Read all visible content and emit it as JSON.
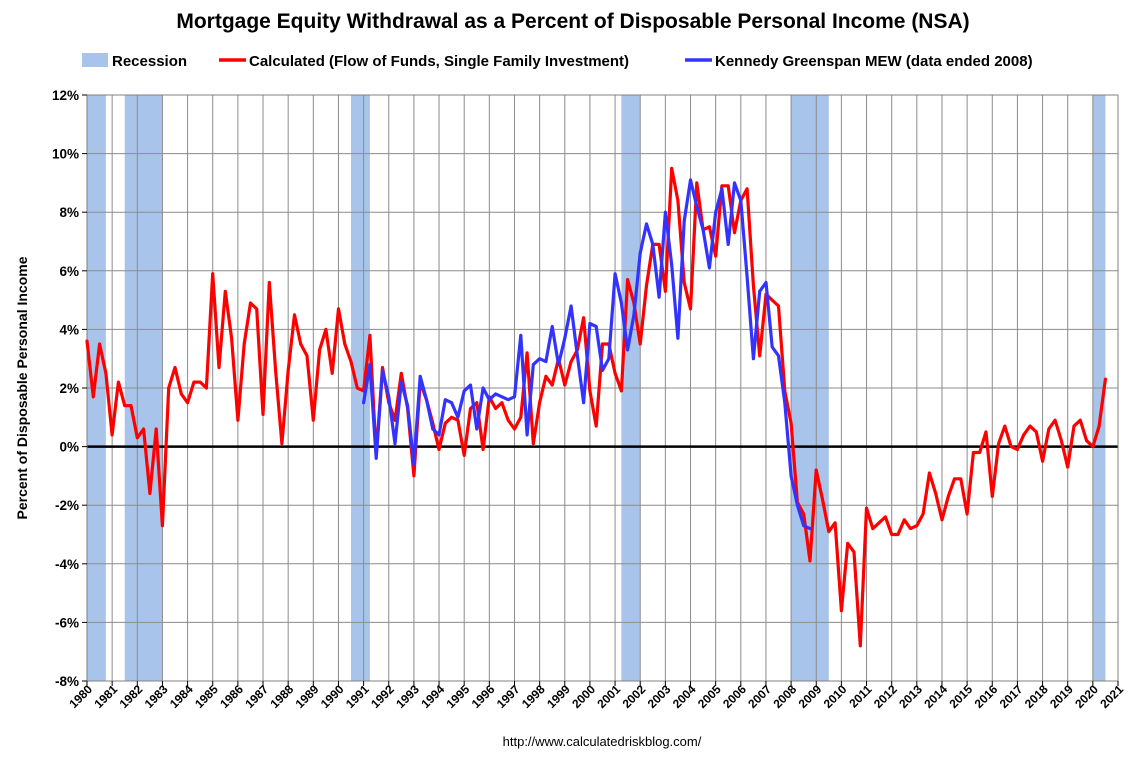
{
  "chart_data": {
    "type": "line",
    "title": "Mortgage Equity Withdrawal as a Percent of Disposable Personal Income (NSA)",
    "ylabel": "Percent of Disposable Personal Income",
    "xlabel": "",
    "source": "http://www.calculatedriskblog.com/",
    "xlim": [
      1980,
      2021
    ],
    "ylim": [
      -8,
      12
    ],
    "yticks": [
      12,
      10,
      8,
      6,
      4,
      2,
      0,
      -2,
      -4,
      -6,
      -8
    ],
    "ytick_labels": [
      "12%",
      "10%",
      "8%",
      "6%",
      "4%",
      "2%",
      "0%",
      "-2%",
      "-4%",
      "-6%",
      "-8%"
    ],
    "xticks": [
      1980,
      1981,
      1982,
      1983,
      1984,
      1985,
      1986,
      1987,
      1988,
      1989,
      1990,
      1991,
      1992,
      1993,
      1994,
      1995,
      1996,
      1997,
      1998,
      1999,
      2000,
      2001,
      2002,
      2003,
      2004,
      2005,
      2006,
      2007,
      2008,
      2009,
      2010,
      2011,
      2012,
      2013,
      2014,
      2015,
      2016,
      2017,
      2018,
      2019,
      2020,
      2021
    ],
    "xtick_labels": [
      "1980",
      "1981",
      "1982",
      "1983",
      "1984",
      "1985",
      "1986",
      "1987",
      "1988",
      "1989",
      "1990",
      "1991",
      "1992",
      "1993",
      "1994",
      "1995",
      "1996",
      "1997",
      "1998",
      "1999",
      "2000",
      "2001",
      "2002",
      "2003",
      "2004",
      "2005",
      "2006",
      "2007",
      "2008",
      "2009",
      "2010",
      "2011",
      "2012",
      "2013",
      "2014",
      "2015",
      "2016",
      "2017",
      "2018",
      "2019",
      "2020",
      "2021"
    ],
    "grid": true,
    "legend_position": "top",
    "zero_line_color": "#000000",
    "recession_color": "#a9c4ea",
    "recessions": [
      {
        "start": 1980.0,
        "end": 1980.75
      },
      {
        "start": 1981.5,
        "end": 1982.99
      },
      {
        "start": 1990.5,
        "end": 1991.25
      },
      {
        "start": 2001.25,
        "end": 2001.99
      },
      {
        "start": 2007.99,
        "end": 2009.5
      },
      {
        "start": 2020.0,
        "end": 2020.5
      }
    ],
    "legend": [
      {
        "label": "Recession",
        "kind": "patch",
        "color": "#a9c4ea"
      },
      {
        "label": "Calculated (Flow of Funds, Single Family Investment)",
        "kind": "line",
        "color": "#ff0000"
      },
      {
        "label": "Kennedy Greenspan MEW (data ended 2008)",
        "kind": "line",
        "color": "#3333ff"
      }
    ],
    "series": [
      {
        "name": "Calculated (Flow of Funds, Single Family Investment)",
        "color": "#ff0000",
        "x": [
          1980.0,
          1980.25,
          1980.5,
          1980.75,
          1981.0,
          1981.25,
          1981.5,
          1981.75,
          1982.0,
          1982.25,
          1982.5,
          1982.75,
          1983.0,
          1983.25,
          1983.5,
          1983.75,
          1984.0,
          1984.25,
          1984.5,
          1984.75,
          1985.0,
          1985.25,
          1985.5,
          1985.75,
          1986.0,
          1986.25,
          1986.5,
          1986.75,
          1987.0,
          1987.25,
          1987.5,
          1987.75,
          1988.0,
          1988.25,
          1988.5,
          1988.75,
          1989.0,
          1989.25,
          1989.5,
          1989.75,
          1990.0,
          1990.25,
          1990.5,
          1990.75,
          1991.0,
          1991.25,
          1991.5,
          1991.75,
          1992.0,
          1992.25,
          1992.5,
          1992.75,
          1993.0,
          1993.25,
          1993.5,
          1993.75,
          1994.0,
          1994.25,
          1994.5,
          1994.75,
          1995.0,
          1995.25,
          1995.5,
          1995.75,
          1996.0,
          1996.25,
          1996.5,
          1996.75,
          1997.0,
          1997.25,
          1997.5,
          1997.75,
          1998.0,
          1998.25,
          1998.5,
          1998.75,
          1999.0,
          1999.25,
          1999.5,
          1999.75,
          2000.0,
          2000.25,
          2000.5,
          2000.75,
          2001.0,
          2001.25,
          2001.5,
          2001.75,
          2002.0,
          2002.25,
          2002.5,
          2002.75,
          2003.0,
          2003.25,
          2003.5,
          2003.75,
          2004.0,
          2004.25,
          2004.5,
          2004.75,
          2005.0,
          2005.25,
          2005.5,
          2005.75,
          2006.0,
          2006.25,
          2006.5,
          2006.75,
          2007.0,
          2007.25,
          2007.5,
          2007.75,
          2008.0,
          2008.25,
          2008.5,
          2008.75,
          2009.0,
          2009.25,
          2009.5,
          2009.75,
          2010.0,
          2010.25,
          2010.5,
          2010.75,
          2011.0,
          2011.25,
          2011.5,
          2011.75,
          2012.0,
          2012.25,
          2012.5,
          2012.75,
          2013.0,
          2013.25,
          2013.5,
          2013.75,
          2014.0,
          2014.25,
          2014.5,
          2014.75,
          2015.0,
          2015.25,
          2015.5,
          2015.75,
          2016.0,
          2016.25,
          2016.5,
          2016.75,
          2017.0,
          2017.25,
          2017.5,
          2017.75,
          2018.0,
          2018.25,
          2018.5,
          2018.75,
          2019.0,
          2019.25,
          2019.5,
          2019.75,
          2020.0,
          2020.25,
          2020.5
        ],
        "values": [
          3.6,
          1.7,
          3.5,
          2.5,
          0.4,
          2.2,
          1.4,
          1.4,
          0.3,
          0.6,
          -1.6,
          0.6,
          -2.7,
          2.0,
          2.7,
          1.8,
          1.5,
          2.2,
          2.2,
          2.0,
          5.9,
          2.7,
          5.3,
          3.7,
          0.9,
          3.5,
          4.9,
          4.7,
          1.1,
          5.6,
          2.6,
          0.1,
          2.6,
          4.5,
          3.5,
          3.1,
          0.9,
          3.3,
          4.0,
          2.5,
          4.7,
          3.5,
          2.9,
          2.0,
          1.9,
          3.8,
          -0.3,
          2.7,
          1.5,
          0.9,
          2.5,
          1.3,
          -1.0,
          2.2,
          1.6,
          0.8,
          -0.1,
          0.8,
          1.0,
          0.9,
          -0.3,
          1.3,
          1.5,
          -0.1,
          1.7,
          1.3,
          1.5,
          0.9,
          0.6,
          1.0,
          3.2,
          0.1,
          1.5,
          2.4,
          2.1,
          3.0,
          2.1,
          2.9,
          3.3,
          4.4,
          1.9,
          0.7,
          3.5,
          3.5,
          2.5,
          1.9,
          5.7,
          4.9,
          3.5,
          5.5,
          6.9,
          6.9,
          5.3,
          9.5,
          8.4,
          5.6,
          4.7,
          9.0,
          7.4,
          7.5,
          6.5,
          8.9,
          8.9,
          7.3,
          8.4,
          8.8,
          5.5,
          3.1,
          5.2,
          5.0,
          4.8,
          1.9,
          0.8,
          -1.9,
          -2.3,
          -3.9,
          -0.8,
          -1.8,
          -2.9,
          -2.6,
          -5.6,
          -3.3,
          -3.6,
          -6.8,
          -2.1,
          -2.8,
          -2.6,
          -2.4,
          -3.0,
          -3.0,
          -2.5,
          -2.8,
          -2.7,
          -2.3,
          -0.9,
          -1.6,
          -2.5,
          -1.7,
          -1.1,
          -1.1,
          -2.3,
          -0.2,
          -0.2,
          0.5,
          -1.7,
          0.1,
          0.7,
          0.0,
          -0.1,
          0.4,
          0.7,
          0.5,
          -0.5,
          0.6,
          0.9,
          0.2,
          -0.7,
          0.7,
          0.9,
          0.2,
          0.0,
          0.7,
          2.3
        ]
      },
      {
        "name": "Kennedy Greenspan MEW (data ended 2008)",
        "color": "#3333ff",
        "x": [
          1991.0,
          1991.25,
          1991.5,
          1991.75,
          1992.0,
          1992.25,
          1992.5,
          1992.75,
          1993.0,
          1993.25,
          1993.5,
          1993.75,
          1994.0,
          1994.25,
          1994.5,
          1994.75,
          1995.0,
          1995.25,
          1995.5,
          1995.75,
          1996.0,
          1996.25,
          1996.5,
          1996.75,
          1997.0,
          1997.25,
          1997.5,
          1997.75,
          1998.0,
          1998.25,
          1998.5,
          1998.75,
          1999.0,
          1999.25,
          1999.5,
          1999.75,
          2000.0,
          2000.25,
          2000.5,
          2000.75,
          2001.0,
          2001.25,
          2001.5,
          2001.75,
          2002.0,
          2002.25,
          2002.5,
          2002.75,
          2003.0,
          2003.25,
          2003.5,
          2003.75,
          2004.0,
          2004.25,
          2004.5,
          2004.75,
          2005.0,
          2005.25,
          2005.5,
          2005.75,
          2006.0,
          2006.25,
          2006.5,
          2006.75,
          2007.0,
          2007.25,
          2007.5,
          2007.75,
          2008.0,
          2008.25,
          2008.5,
          2008.75
        ],
        "values": [
          1.5,
          2.8,
          -0.4,
          2.6,
          1.7,
          0.1,
          2.2,
          1.4,
          -0.6,
          2.4,
          1.6,
          0.6,
          0.4,
          1.6,
          1.5,
          1.0,
          1.9,
          2.1,
          0.6,
          2.0,
          1.6,
          1.8,
          1.7,
          1.6,
          1.7,
          3.8,
          0.4,
          2.8,
          3.0,
          2.9,
          4.1,
          2.8,
          3.7,
          4.8,
          3.1,
          1.5,
          4.2,
          4.1,
          2.6,
          3.0,
          5.9,
          4.9,
          3.3,
          4.5,
          6.6,
          7.6,
          6.9,
          5.1,
          8.0,
          6.2,
          3.7,
          7.7,
          9.1,
          8.2,
          7.4,
          6.1,
          8.0,
          8.8,
          6.9,
          9.0,
          8.4,
          5.8,
          3.0,
          5.3,
          5.6,
          3.4,
          3.1,
          1.5,
          -1.0,
          -2.0,
          -2.7,
          -2.8
        ]
      }
    ]
  }
}
